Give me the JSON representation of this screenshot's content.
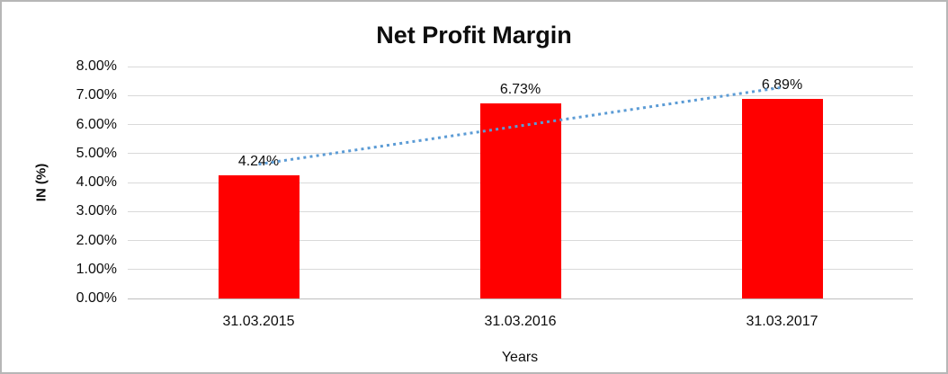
{
  "chart_data": {
    "type": "bar",
    "title": "Net Profit Margin",
    "xlabel": "Years",
    "ylabel": "IN (%)",
    "categories": [
      "31.03.2015",
      "31.03.2016",
      "31.03.2017"
    ],
    "values": [
      4.24,
      6.73,
      6.89
    ],
    "value_labels": [
      "4.24%",
      "6.73%",
      "6.89%"
    ],
    "ylim": [
      0,
      8
    ],
    "ytick_labels": [
      "0.00%",
      "1.00%",
      "2.00%",
      "3.00%",
      "4.00%",
      "5.00%",
      "6.00%",
      "7.00%",
      "8.00%"
    ],
    "grid": "horizontal",
    "legend_position": "none",
    "trendline": {
      "type": "linear",
      "style": "dotted",
      "endpoints_pct": [
        4.63,
        7.28
      ]
    }
  },
  "colors": {
    "bar": "#FF0000",
    "trendline": "#5B9BD5",
    "gridline": "#D9D9D9",
    "axis_line": "#BFBFBF",
    "text": "#0D0D0D",
    "frame_border": "#B7B7B7",
    "background": "#FFFFFF"
  }
}
